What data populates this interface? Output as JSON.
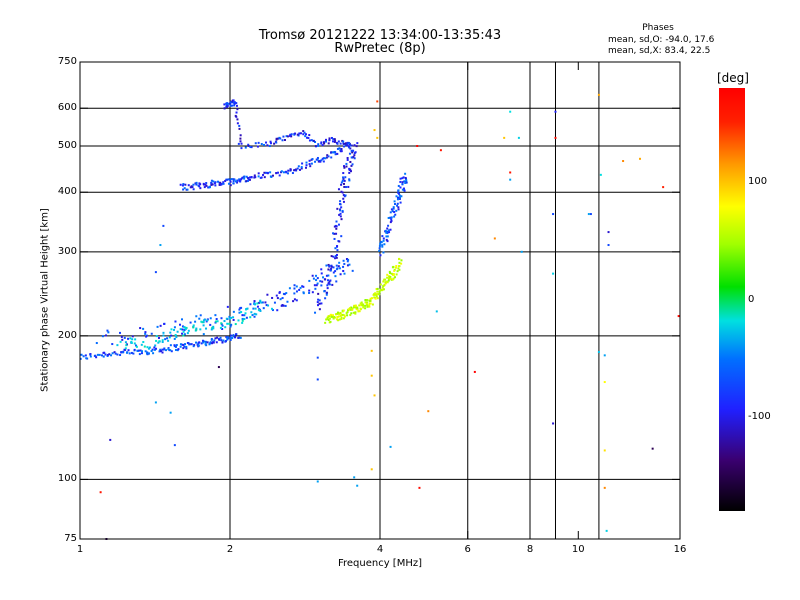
{
  "header": {
    "title_line1": "Tromsø 20121222 13:34:00-13:35:43",
    "title_line2": "RwPretec (8p)",
    "phases_label": "Phases",
    "phases_o": "mean, sd,O: -94.0, 17.6",
    "phases_x": "mean, sd,X: 83.4, 22.5"
  },
  "colorbar": {
    "unit": "[deg]",
    "range": [
      -180,
      180
    ],
    "ticks": [
      {
        "value": 100,
        "label": "100"
      },
      {
        "value": 0,
        "label": "0"
      },
      {
        "value": -100,
        "label": "-100"
      }
    ]
  },
  "chart_data": {
    "type": "scatter",
    "title": "Tromsø 20121222 13:34:00-13:35:43",
    "subtitle": "RwPretec (8p)",
    "xlabel": "Frequency [MHz]",
    "ylabel": "Stationary phase Virtual Height [km]",
    "xscale": "log",
    "yscale": "log",
    "xlim": [
      1,
      16
    ],
    "ylim": [
      75,
      750
    ],
    "grid": true,
    "xticks": [
      {
        "value": 1,
        "label": "1"
      },
      {
        "value": 2,
        "label": "2"
      },
      {
        "value": 4,
        "label": "4"
      },
      {
        "value": 6,
        "label": "6"
      },
      {
        "value": 8,
        "label": "8"
      },
      {
        "value": 10,
        "label": "10"
      },
      {
        "value": 16,
        "label": "16"
      }
    ],
    "xgrid": [
      2,
      4,
      6,
      8,
      9,
      11
    ],
    "yticks": [
      {
        "value": 75,
        "label": "75"
      },
      {
        "value": 100,
        "label": "100"
      },
      {
        "value": 200,
        "label": "200"
      },
      {
        "value": 300,
        "label": "300"
      },
      {
        "value": 400,
        "label": "400"
      },
      {
        "value": 500,
        "label": "500"
      },
      {
        "value": 600,
        "label": "600"
      },
      {
        "value": 750,
        "label": "750"
      }
    ],
    "ygrid": [
      100,
      200,
      300,
      400,
      500,
      600
    ],
    "color_by": "phase (deg)",
    "traces": [
      {
        "desc": "O-mode F trace, lower branch",
        "x": [
          1.0,
          1.1,
          1.2,
          1.3,
          1.4,
          1.5,
          1.6,
          1.7,
          1.8,
          1.9,
          2.0,
          2.1
        ],
        "y": [
          180,
          183,
          184,
          185,
          186,
          188,
          190,
          192,
          194,
          196,
          198,
          200
        ],
        "phase": -100,
        "spread": 0.02
      },
      {
        "desc": "O-mode scattered upper band",
        "x": [
          1.1,
          1.3,
          1.5,
          1.7,
          1.9,
          2.1,
          2.3,
          2.5,
          2.7,
          2.9,
          3.1,
          3.3,
          3.5
        ],
        "y": [
          195,
          200,
          205,
          210,
          215,
          225,
          230,
          238,
          245,
          255,
          265,
          275,
          285
        ],
        "phase": -100,
        "spread": 0.06
      },
      {
        "desc": "cyan echoes",
        "x": [
          1.2,
          1.35,
          1.5,
          1.65,
          1.8,
          2.0,
          2.2,
          2.4
        ],
        "y": [
          195,
          190,
          200,
          205,
          210,
          215,
          225,
          235
        ],
        "phase": -30,
        "spread": 0.04
      },
      {
        "desc": "steep O-mode rise near critical frequency",
        "x": [
          3.0,
          3.1,
          3.2,
          3.25,
          3.3,
          3.35,
          3.4,
          3.45,
          3.5,
          3.55
        ],
        "y": [
          230,
          250,
          270,
          300,
          340,
          380,
          420,
          450,
          480,
          500
        ],
        "phase": -110,
        "spread": 0.04
      },
      {
        "desc": "second-hop / sporadic band",
        "x": [
          1.6,
          1.7,
          1.8,
          1.9,
          2.0,
          2.1,
          2.2,
          2.4,
          2.6,
          2.8,
          3.0,
          3.2,
          3.4
        ],
        "y": [
          410,
          412,
          415,
          418,
          420,
          425,
          430,
          435,
          440,
          455,
          465,
          480,
          495
        ],
        "phase": -105,
        "spread": 0.02
      },
      {
        "desc": "upper trace segments",
        "x": [
          1.95,
          2.0,
          2.05,
          2.1,
          2.4,
          2.6,
          2.8,
          3.0,
          3.2,
          3.4,
          3.5
        ],
        "y": [
          605,
          612,
          618,
          500,
          505,
          520,
          535,
          500,
          515,
          505,
          500
        ],
        "phase": -110,
        "spread": 0.015
      },
      {
        "desc": "X-mode trace (yellow)",
        "x": [
          3.1,
          3.2,
          3.3,
          3.4,
          3.5,
          3.6,
          3.7,
          3.8,
          3.9,
          4.0,
          4.1,
          4.2,
          4.3,
          4.4
        ],
        "y": [
          215,
          218,
          220,
          222,
          225,
          228,
          232,
          235,
          240,
          250,
          260,
          265,
          275,
          290
        ],
        "phase": 60,
        "spread": 0.025
      },
      {
        "desc": "X-mode steep rise",
        "x": [
          4.0,
          4.1,
          4.2,
          4.3,
          4.4,
          4.45,
          4.5
        ],
        "y": [
          300,
          320,
          345,
          370,
          395,
          420,
          430
        ],
        "phase": -100,
        "spread": 0.03
      }
    ],
    "points": [
      {
        "x": 1.1,
        "y": 94,
        "phase": 160
      },
      {
        "x": 1.13,
        "y": 75,
        "phase": -150
      },
      {
        "x": 1.15,
        "y": 121,
        "phase": -120
      },
      {
        "x": 1.42,
        "y": 145,
        "phase": -60
      },
      {
        "x": 1.52,
        "y": 138,
        "phase": -60
      },
      {
        "x": 1.55,
        "y": 118,
        "phase": -100
      },
      {
        "x": 1.42,
        "y": 272,
        "phase": -100
      },
      {
        "x": 1.45,
        "y": 310,
        "phase": -60
      },
      {
        "x": 1.47,
        "y": 340,
        "phase": -100
      },
      {
        "x": 1.9,
        "y": 172,
        "phase": -150
      },
      {
        "x": 2.55,
        "y": 240,
        "phase": -100
      },
      {
        "x": 3.0,
        "y": 99,
        "phase": -60
      },
      {
        "x": 3.0,
        "y": 180,
        "phase": -100
      },
      {
        "x": 3.0,
        "y": 162,
        "phase": -100
      },
      {
        "x": 3.55,
        "y": 101,
        "phase": -60
      },
      {
        "x": 3.6,
        "y": 97,
        "phase": -60
      },
      {
        "x": 3.85,
        "y": 105,
        "phase": 100
      },
      {
        "x": 3.85,
        "y": 186,
        "phase": 100
      },
      {
        "x": 3.85,
        "y": 165,
        "phase": 100
      },
      {
        "x": 3.9,
        "y": 150,
        "phase": 100
      },
      {
        "x": 3.95,
        "y": 620,
        "phase": 140
      },
      {
        "x": 3.9,
        "y": 540,
        "phase": 100
      },
      {
        "x": 3.95,
        "y": 520,
        "phase": 100
      },
      {
        "x": 4.2,
        "y": 117,
        "phase": -60
      },
      {
        "x": 4.8,
        "y": 96,
        "phase": 170
      },
      {
        "x": 5.0,
        "y": 139,
        "phase": 120
      },
      {
        "x": 5.2,
        "y": 225,
        "phase": -40
      },
      {
        "x": 4.75,
        "y": 500,
        "phase": 175
      },
      {
        "x": 5.3,
        "y": 490,
        "phase": 160
      },
      {
        "x": 6.2,
        "y": 168,
        "phase": 180
      },
      {
        "x": 6.8,
        "y": 320,
        "phase": 120
      },
      {
        "x": 7.3,
        "y": 440,
        "phase": 160
      },
      {
        "x": 7.3,
        "y": 425,
        "phase": -60
      },
      {
        "x": 7.3,
        "y": 590,
        "phase": -20
      },
      {
        "x": 7.6,
        "y": 520,
        "phase": -30
      },
      {
        "x": 7.1,
        "y": 520,
        "phase": 100
      },
      {
        "x": 8.9,
        "y": 360,
        "phase": -100
      },
      {
        "x": 8.9,
        "y": 270,
        "phase": -30
      },
      {
        "x": 8.9,
        "y": 131,
        "phase": -120
      },
      {
        "x": 9.0,
        "y": 520,
        "phase": 170
      },
      {
        "x": 9.0,
        "y": 590,
        "phase": -110
      },
      {
        "x": 11.0,
        "y": 640,
        "phase": 110
      },
      {
        "x": 10.5,
        "y": 360,
        "phase": -60
      },
      {
        "x": 11.5,
        "y": 330,
        "phase": -120
      },
      {
        "x": 11.5,
        "y": 310,
        "phase": -100
      },
      {
        "x": 11.0,
        "y": 185,
        "phase": -40
      },
      {
        "x": 11.3,
        "y": 182,
        "phase": -60
      },
      {
        "x": 11.3,
        "y": 160,
        "phase": 80
      },
      {
        "x": 11.3,
        "y": 115,
        "phase": 90
      },
      {
        "x": 11.3,
        "y": 96,
        "phase": 120
      },
      {
        "x": 11.4,
        "y": 78,
        "phase": -30
      },
      {
        "x": 11.1,
        "y": 435,
        "phase": -20
      },
      {
        "x": 12.3,
        "y": 465,
        "phase": 120
      },
      {
        "x": 13.3,
        "y": 470,
        "phase": 110
      },
      {
        "x": 14.8,
        "y": 410,
        "phase": 150
      },
      {
        "x": 14.1,
        "y": 116,
        "phase": -150
      },
      {
        "x": 15.9,
        "y": 220,
        "phase": 170
      },
      {
        "x": 7.7,
        "y": 300,
        "phase": -60
      },
      {
        "x": 10.6,
        "y": 360,
        "phase": -100
      }
    ]
  }
}
